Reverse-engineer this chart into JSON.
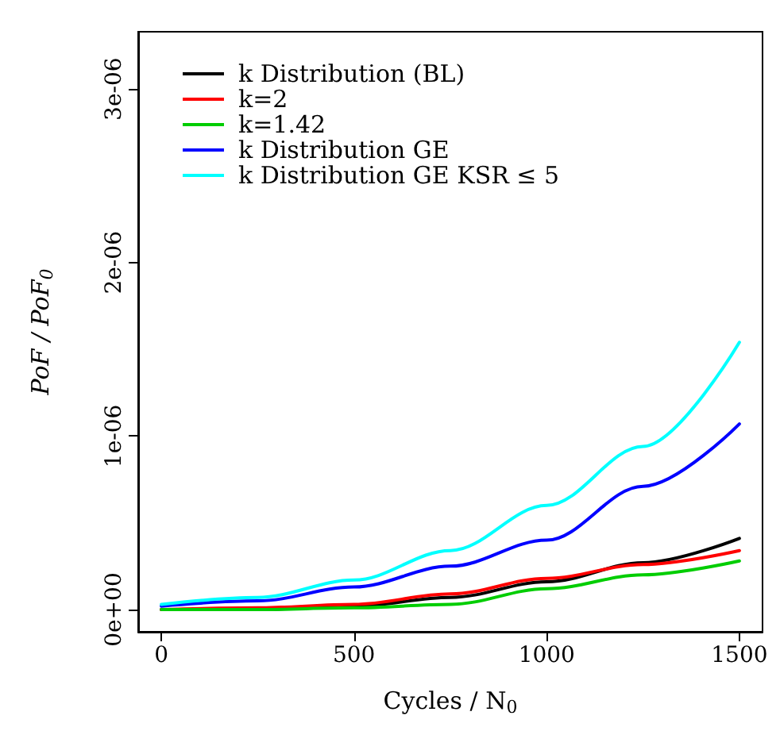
{
  "chart_data": {
    "type": "line",
    "xlabel": "Cycles / N$_{0}$",
    "ylabel": "PoF / PoF$_{0}$",
    "x": [
      0,
      250,
      500,
      750,
      1000,
      1250,
      1500
    ],
    "series": [
      {
        "name": "k Distribution (BL)",
        "color": "#000000",
        "values": [
          0,
          0,
          2e-08,
          7e-08,
          1.6e-07,
          2.7e-07,
          4.1e-07
        ]
      },
      {
        "name": "k=2",
        "color": "#ff0000",
        "values": [
          0,
          1e-08,
          3e-08,
          9e-08,
          1.8e-07,
          2.6e-07,
          3.4e-07
        ]
      },
      {
        "name": "k=1.42",
        "color": "#00cd00",
        "values": [
          0,
          0,
          1e-08,
          3e-08,
          1.2e-07,
          2e-07,
          2.8e-07
        ]
      },
      {
        "name": "k Distribution GE",
        "color": "#0000ff",
        "values": [
          2e-08,
          5e-08,
          1.3e-07,
          2.5e-07,
          4e-07,
          7.1e-07,
          1.07e-06
        ]
      },
      {
        "name": "k Distribution GE KSR ≤ 5",
        "color": "#00ffff",
        "values": [
          3e-08,
          7e-08,
          1.7e-07,
          3.4e-07,
          6e-07,
          9.4e-07,
          1.54e-06
        ]
      }
    ],
    "xlim": [
      -60,
      1560
    ],
    "xticks": [
      0,
      500,
      1000,
      1500
    ],
    "ylim": [
      -1.28e-07,
      3.33e-06
    ],
    "yticks": [
      {
        "value": 0,
        "label": "0e+00"
      },
      {
        "value": 1e-06,
        "label": "1e-06"
      },
      {
        "value": 2e-06,
        "label": "2e-06"
      },
      {
        "value": 3e-06,
        "label": "3e-06"
      }
    ],
    "grid": false,
    "legend": "top left",
    "marker": "none",
    "line_style": "solid"
  }
}
